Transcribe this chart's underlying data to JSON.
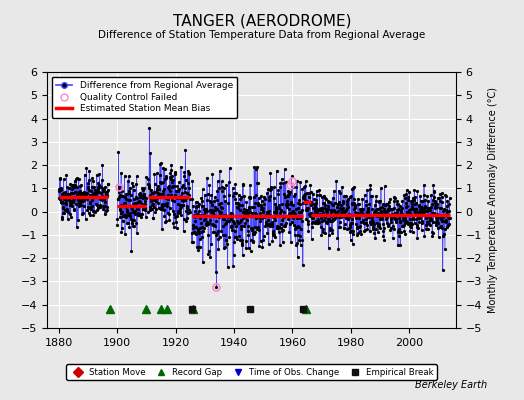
{
  "title": "TANGER (AERODROME)",
  "subtitle": "Difference of Station Temperature Data from Regional Average",
  "ylabel": "Monthly Temperature Anomaly Difference (°C)",
  "xlim": [
    1876,
    2016
  ],
  "ylim": [
    -5,
    6
  ],
  "xticks": [
    1880,
    1900,
    1920,
    1940,
    1960,
    1980,
    2000
  ],
  "bg_color": "#e8e8e8",
  "plot_bg_color": "#e8e8e8",
  "grid_color": "#ffffff",
  "line_color": "#4444ff",
  "dot_color": "#000000",
  "bias_color": "#ff0000",
  "qc_color": "#ff88cc",
  "station_move_color": "#cc0000",
  "record_gap_color": "#006600",
  "obs_change_color": "#0000cc",
  "empirical_break_color": "#111111",
  "watermark": "Berkeley Earth",
  "segments": [
    {
      "start": 1880.0,
      "end": 1897.0,
      "bias": 0.65
    },
    {
      "start": 1900.0,
      "end": 1910.0,
      "bias": 0.25
    },
    {
      "start": 1910.5,
      "end": 1925.0,
      "bias": 0.65
    },
    {
      "start": 1925.5,
      "end": 1940.0,
      "bias": -0.2
    },
    {
      "start": 1940.0,
      "end": 1963.5,
      "bias": -0.2
    },
    {
      "start": 1963.5,
      "end": 1966.5,
      "bias": 0.4
    },
    {
      "start": 1966.5,
      "end": 2014.0,
      "bias": -0.15
    }
  ],
  "record_gaps": [
    1897.5,
    1910.0,
    1915.0,
    1917.0,
    1926.0,
    1964.5
  ],
  "empirical_breaks": [
    1925.5,
    1945.5,
    1963.5
  ],
  "obs_changes": [],
  "station_moves": [],
  "qc_fail_years": [
    1900.5,
    1934.0,
    1959.3,
    1959.7
  ],
  "qc_fail_vals": [
    1.05,
    -3.25,
    1.15,
    1.3
  ],
  "legend1_labels": [
    "Difference from Regional Average",
    "Quality Control Failed",
    "Estimated Station Mean Bias"
  ],
  "legend2_labels": [
    "Station Move",
    "Record Gap",
    "Time of Obs. Change",
    "Empirical Break"
  ]
}
